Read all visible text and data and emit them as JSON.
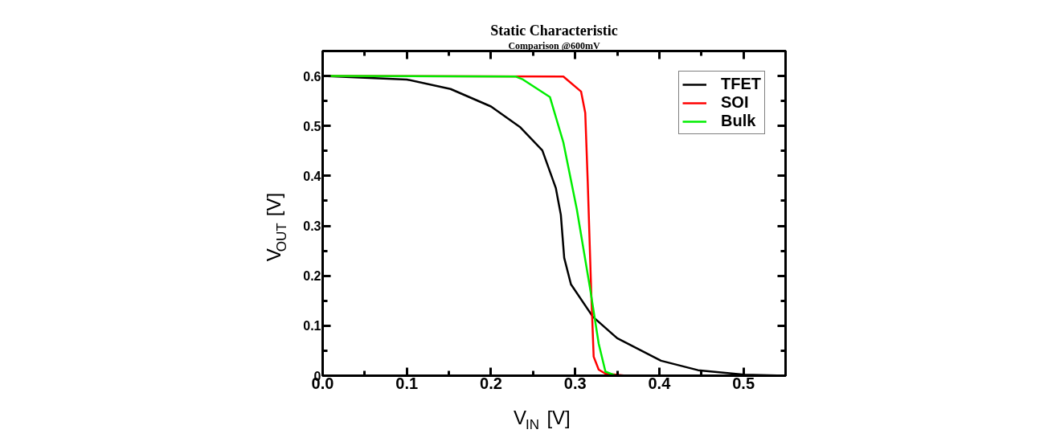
{
  "chart_data": {
    "type": "line",
    "title": "Static Characteristic",
    "subtitle": "Comparison @600mV",
    "xlabel": "V$_{IN}$ [V]",
    "ylabel": "V$_{OUT}$ [V]",
    "xlim": [
      0,
      0.55
    ],
    "ylim": [
      0,
      0.65
    ],
    "xticks": [
      {
        "value": 0,
        "label": "0.0"
      },
      0.1,
      0.2,
      0.3,
      0.4,
      0.5
    ],
    "yticks": [
      0,
      0.1,
      0.2,
      0.3,
      0.4,
      0.5,
      0.6
    ],
    "legend": "top right",
    "grid": false,
    "line_style": "solid",
    "marker": "none",
    "series": [
      {
        "name": "TFET",
        "color": "#000000",
        "x": [
          0,
          0.1,
          0.152,
          0.2,
          0.235,
          0.261,
          0.277,
          0.283,
          0.287,
          0.295,
          0.321,
          0.35,
          0.402,
          0.446,
          0.501,
          0.55
        ],
        "values": [
          0.6,
          0.593,
          0.574,
          0.539,
          0.497,
          0.451,
          0.376,
          0.322,
          0.236,
          0.183,
          0.118,
          0.075,
          0.03,
          0.011,
          0.002,
          0
        ]
      },
      {
        "name": "SOI",
        "color": "#ff0000",
        "x": [
          0,
          0.286,
          0.307,
          0.312,
          0.315,
          0.319,
          0.322,
          0.328,
          0.336,
          0.36,
          0.55
        ],
        "values": [
          0.6,
          0.599,
          0.569,
          0.526,
          0.386,
          0.172,
          0.038,
          0.012,
          0.004,
          0,
          0
        ]
      },
      {
        "name": "Bulk",
        "color": "#00ee00",
        "x": [
          0,
          0.229,
          0.238,
          0.27,
          0.286,
          0.302,
          0.318,
          0.328,
          0.336,
          0.347,
          0.55
        ],
        "values": [
          0.6,
          0.599,
          0.593,
          0.558,
          0.467,
          0.333,
          0.172,
          0.064,
          0.008,
          0.001,
          0
        ]
      }
    ]
  }
}
